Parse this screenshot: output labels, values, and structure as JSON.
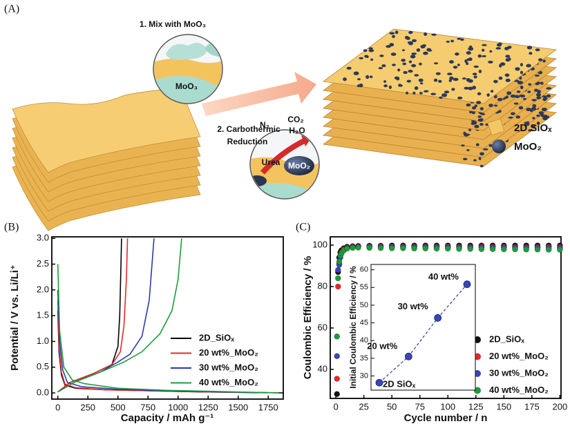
{
  "panel_a": {
    "label": "(A)",
    "step1": "1. Mix with MoO₃",
    "bubble1_label": "MoO₃",
    "step2_line1": "2. Carbothermic",
    "step2_line2": "Reduction",
    "gas_n2": "N₂",
    "gas_co2": "CO₂",
    "gas_h2o": "H₂O",
    "urea": "Urea",
    "bubble2_label": "MoO₂",
    "legend": [
      "2D SiOₓ",
      "MoO₂"
    ]
  },
  "chart_data": [
    {
      "type": "line",
      "panel_label": "(B)",
      "xlabel": "Capacity / mAh g⁻¹",
      "ylabel": "Potential / V vs. Li/Li⁺",
      "xlim": [
        -50,
        1875
      ],
      "ylim": [
        -0.12,
        3.03
      ],
      "xticks": [
        0,
        250,
        500,
        750,
        1000,
        1250,
        1500,
        1750
      ],
      "yticks": [
        {
          "value": 0,
          "label": "0.0"
        },
        0.5,
        {
          "value": 1,
          "label": "1.0"
        },
        1.5,
        {
          "value": 2,
          "label": "2.0"
        },
        2.5,
        {
          "value": 3,
          "label": "3.0"
        }
      ],
      "legend": "lower right",
      "series": [
        {
          "name": "2D_SiOₓ",
          "color": "#000000",
          "x": [
            0,
            10,
            30,
            60,
            150,
            400,
            800,
            1200,
            1600,
            1880,
            null,
            0,
            100,
            300,
            450,
            500,
            515,
            525,
            530
          ],
          "values": [
            1.6,
            0.8,
            0.35,
            0.15,
            0.09,
            0.06,
            0.04,
            0.02,
            0.01,
            0.0,
            null,
            0.02,
            0.2,
            0.38,
            0.55,
            0.9,
            1.5,
            2.5,
            3.0
          ]
        },
        {
          "name": "20 wt%_MoO₂",
          "color": "#e8262a",
          "x": [
            0,
            10,
            30,
            60,
            150,
            400,
            800,
            1200,
            1500,
            1660,
            null,
            0,
            100,
            300,
            450,
            520,
            550,
            570,
            580
          ],
          "values": [
            1.8,
            0.9,
            0.4,
            0.17,
            0.1,
            0.06,
            0.04,
            0.02,
            0.01,
            0.0,
            null,
            0.02,
            0.2,
            0.38,
            0.55,
            0.8,
            1.3,
            2.2,
            3.0
          ]
        },
        {
          "name": "30 wt%_MoO₂",
          "color": "#2a3aa8",
          "x": [
            0,
            15,
            40,
            80,
            200,
            500,
            900,
            1300,
            1600,
            1740,
            null,
            0,
            150,
            350,
            500,
            600,
            700,
            760,
            800
          ],
          "values": [
            2.0,
            1.0,
            0.45,
            0.2,
            0.12,
            0.07,
            0.04,
            0.02,
            0.01,
            0.0,
            null,
            0.02,
            0.22,
            0.4,
            0.6,
            0.75,
            1.1,
            1.8,
            3.0
          ]
        },
        {
          "name": "40 wt%_MoO₂",
          "color": "#1e9a3a",
          "x": [
            0,
            15,
            50,
            120,
            220,
            500,
            900,
            1300,
            1650,
            1840,
            null,
            0,
            150,
            400,
            550,
            700,
            850,
            950,
            1000,
            1030
          ],
          "values": [
            2.5,
            1.2,
            0.5,
            0.25,
            0.18,
            0.09,
            0.05,
            0.03,
            0.01,
            0.0,
            null,
            0.02,
            0.22,
            0.45,
            0.6,
            0.8,
            1.15,
            1.6,
            2.2,
            3.0
          ]
        }
      ]
    },
    {
      "type": "scatter",
      "panel_label": "(C)",
      "xlabel": "Cycle number / n",
      "ylabel": "Coulombic Efficiency / %",
      "xlim": [
        -5,
        201
      ],
      "ylim": [
        26,
        104
      ],
      "xticks": [
        0,
        25,
        50,
        75,
        100,
        125,
        150,
        175,
        200
      ],
      "yticks": [
        40,
        60,
        80,
        100
      ],
      "legend": "lower right",
      "x": [
        1,
        2,
        3,
        4,
        5,
        7,
        10,
        15,
        20,
        30,
        40,
        50,
        60,
        70,
        80,
        90,
        100,
        110,
        120,
        130,
        140,
        150,
        160,
        170,
        180,
        190,
        200
      ],
      "series": [
        {
          "name": "2D_SiOₓ",
          "color": "#111111",
          "values": [
            28.1,
            87,
            94,
            96.5,
            97.5,
            98.5,
            99.2,
            99.5,
            99.6,
            99.7,
            99.7,
            99.8,
            99.8,
            99.8,
            99.8,
            99.8,
            99.8,
            99.8,
            99.8,
            99.8,
            99.8,
            99.8,
            99.8,
            99.8,
            99.8,
            99.8,
            99.8
          ]
        },
        {
          "name": "20 wt%_MoO₂",
          "color": "#e8262a",
          "values": [
            35.5,
            80,
            91,
            95,
            96.5,
            98,
            98.8,
            99.3,
            99.4,
            99.4,
            99.4,
            99.3,
            99.3,
            99.3,
            99.3,
            99.3,
            99.3,
            99.2,
            99.2,
            99.2,
            99.2,
            99.2,
            99.1,
            99.1,
            99.1,
            99.1,
            99.0
          ]
        },
        {
          "name": "30 wt%_MoO₂",
          "color": "#3a46b8",
          "values": [
            46.4,
            88,
            90.5,
            94,
            96,
            97.5,
            98.5,
            99,
            99.2,
            99.2,
            99.1,
            99.1,
            99.0,
            99.0,
            99.0,
            99.0,
            98.9,
            98.9,
            98.9,
            98.8,
            98.8,
            98.8,
            98.7,
            98.7,
            98.7,
            98.6,
            98.6
          ]
        },
        {
          "name": "40 wt%_MoO₂",
          "color": "#1e9a3a",
          "values": [
            55.9,
            84,
            92,
            95,
            96,
            97.5,
            98.3,
            98.7,
            98.8,
            98.7,
            98.6,
            98.5,
            98.5,
            98.4,
            98.4,
            98.3,
            98.3,
            98.2,
            98.2,
            98.1,
            98.1,
            98.0,
            98.0,
            97.9,
            97.9,
            97.8,
            97.8
          ]
        }
      ]
    },
    {
      "type": "inset",
      "ylabel": "Initial Coulombic Efficiency / %",
      "ylim": [
        26,
        61.5
      ],
      "yticks": [
        30,
        35,
        40,
        45,
        50,
        55,
        60
      ],
      "categories": [
        "2D SiOₓ",
        "20 wt%",
        "30 wt%",
        "40 wt%"
      ],
      "values": [
        28.1,
        35.5,
        46.4,
        55.9
      ],
      "color": "#3a46b8",
      "linestyle": "dashed"
    }
  ]
}
